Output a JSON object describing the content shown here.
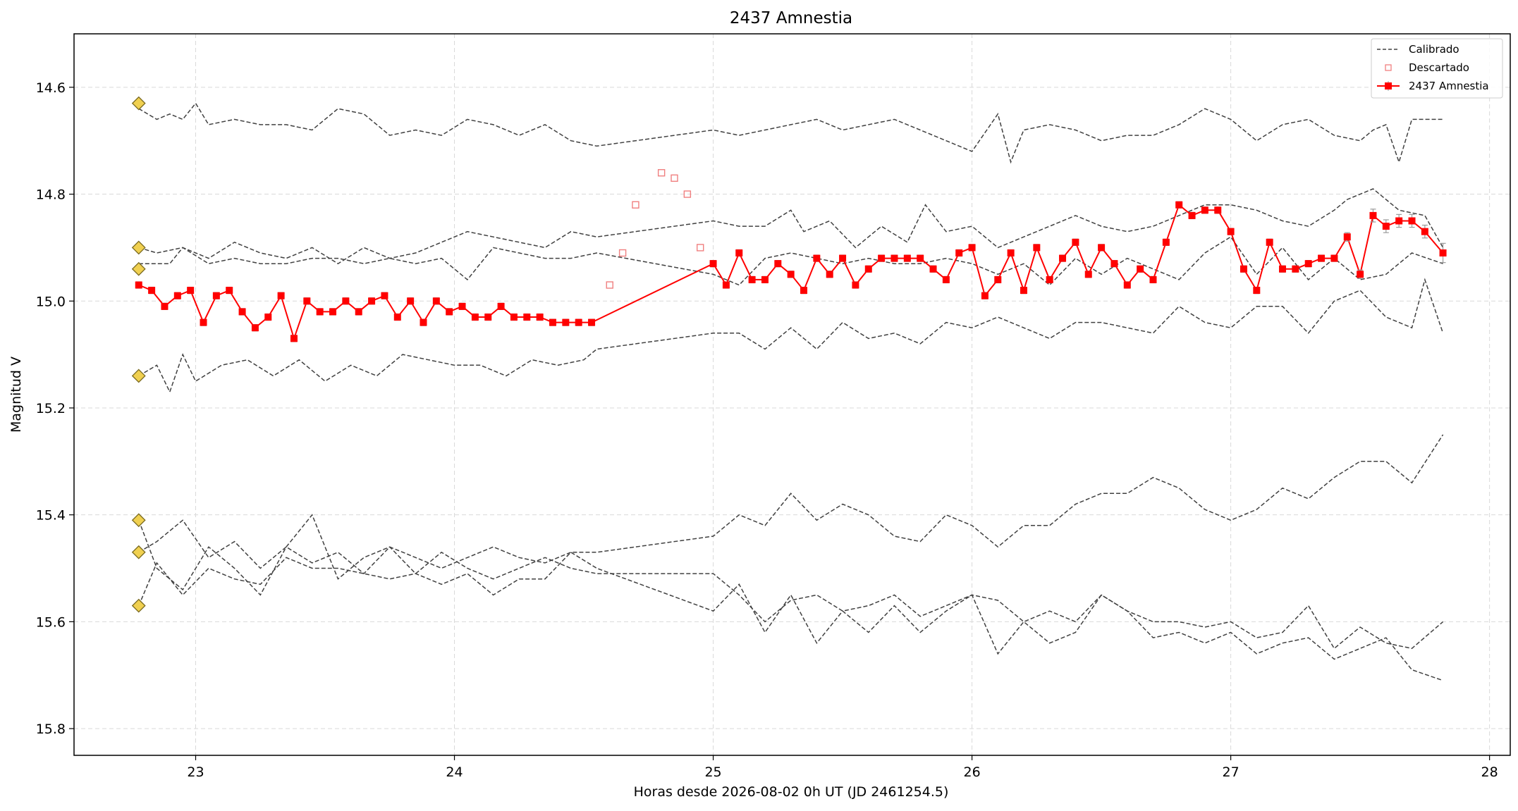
{
  "chart_data": {
    "type": "line",
    "title": "2437 Amnestia",
    "xlabel": "Horas desde 2026-08-02 0h UT (JD 2461254.5)",
    "ylabel": "Magnitud V",
    "xlim": [
      22.53,
      28.08
    ],
    "ylim": [
      15.85,
      14.5
    ],
    "y_inverted": true,
    "x_ticks": [
      23,
      24,
      25,
      26,
      27,
      28
    ],
    "y_ticks": [
      14.6,
      14.8,
      15.0,
      15.2,
      15.4,
      15.6,
      15.8
    ],
    "x_tick_labels": [
      "23",
      "24",
      "25",
      "26",
      "27",
      "28"
    ],
    "y_tick_labels": [
      "14.6",
      "14.8",
      "15.0",
      "15.2",
      "15.4",
      "15.6",
      "15.8"
    ],
    "grid": true,
    "legend_position": "top-right",
    "legend": [
      {
        "label": "Calibrado",
        "style": "dashed-line",
        "color": "#404040"
      },
      {
        "label": "Descartado",
        "style": "open-square",
        "color": "#f08080"
      },
      {
        "label": "2437 Amnestia",
        "style": "line-square-errorbar",
        "color": "#ff0000"
      }
    ],
    "comparison_markers": {
      "x": 22.78,
      "y": [
        14.63,
        14.9,
        14.94,
        15.14,
        15.41,
        15.47,
        15.57
      ],
      "color": "#f0d050"
    },
    "calibrated_series": [
      {
        "x": [
          22.78,
          22.85,
          22.9,
          22.95,
          23.0,
          23.05,
          23.15,
          23.25,
          23.35,
          23.45,
          23.55,
          23.65,
          23.75,
          23.85,
          23.95,
          24.05,
          24.15,
          24.25,
          24.35,
          24.45,
          24.55,
          25.0,
          25.1,
          25.2,
          25.3,
          25.4,
          25.5,
          25.6,
          25.7,
          25.8,
          25.9,
          26.0,
          26.1,
          26.15,
          26.2,
          26.3,
          26.4,
          26.5,
          26.6,
          26.7,
          26.8,
          26.9,
          27.0,
          27.1,
          27.2,
          27.3,
          27.4,
          27.5,
          27.55,
          27.6,
          27.65,
          27.7,
          27.82
        ],
        "y": [
          14.64,
          14.66,
          14.65,
          14.66,
          14.63,
          14.67,
          14.66,
          14.67,
          14.67,
          14.68,
          14.64,
          14.65,
          14.69,
          14.68,
          14.69,
          14.66,
          14.67,
          14.69,
          14.67,
          14.7,
          14.71,
          14.68,
          14.69,
          14.68,
          14.67,
          14.66,
          14.68,
          14.67,
          14.66,
          14.68,
          14.7,
          14.72,
          14.65,
          14.74,
          14.68,
          14.67,
          14.68,
          14.7,
          14.69,
          14.69,
          14.67,
          14.64,
          14.66,
          14.7,
          14.67,
          14.66,
          14.69,
          14.7,
          14.68,
          14.67,
          14.74,
          14.66,
          14.66
        ]
      },
      {
        "x": [
          22.78,
          22.85,
          22.95,
          23.05,
          23.15,
          23.25,
          23.35,
          23.45,
          23.55,
          23.65,
          23.75,
          23.85,
          23.95,
          24.05,
          24.15,
          24.25,
          24.35,
          24.45,
          24.55,
          25.0,
          25.1,
          25.2,
          25.3,
          25.35,
          25.45,
          25.55,
          25.65,
          25.75,
          25.82,
          25.9,
          26.0,
          26.1,
          26.2,
          26.3,
          26.4,
          26.5,
          26.6,
          26.7,
          26.8,
          26.9,
          27.0,
          27.1,
          27.2,
          27.3,
          27.4,
          27.45,
          27.55,
          27.65,
          27.75,
          27.82
        ],
        "y": [
          14.9,
          14.91,
          14.9,
          14.92,
          14.89,
          14.91,
          14.92,
          14.9,
          14.93,
          14.9,
          14.92,
          14.91,
          14.89,
          14.87,
          14.88,
          14.89,
          14.9,
          14.87,
          14.88,
          14.85,
          14.86,
          14.86,
          14.83,
          14.87,
          14.85,
          14.9,
          14.86,
          14.89,
          14.82,
          14.87,
          14.86,
          14.9,
          14.88,
          14.86,
          14.84,
          14.86,
          14.87,
          14.86,
          14.84,
          14.82,
          14.82,
          14.83,
          14.85,
          14.86,
          14.83,
          14.81,
          14.79,
          14.83,
          14.84,
          14.9
        ]
      },
      {
        "x": [
          22.78,
          22.85,
          22.9,
          22.95,
          23.05,
          23.15,
          23.25,
          23.35,
          23.45,
          23.55,
          23.65,
          23.75,
          23.85,
          23.95,
          24.05,
          24.15,
          24.25,
          24.35,
          24.45,
          24.55,
          25.0,
          25.1,
          25.2,
          25.3,
          25.4,
          25.5,
          25.6,
          25.7,
          25.8,
          25.9,
          26.0,
          26.1,
          26.2,
          26.3,
          26.4,
          26.5,
          26.6,
          26.7,
          26.8,
          26.9,
          27.0,
          27.1,
          27.2,
          27.3,
          27.4,
          27.5,
          27.6,
          27.7,
          27.82
        ],
        "y": [
          14.93,
          14.93,
          14.93,
          14.9,
          14.93,
          14.92,
          14.93,
          14.93,
          14.92,
          14.92,
          14.93,
          14.92,
          14.93,
          14.92,
          14.96,
          14.9,
          14.91,
          14.92,
          14.92,
          14.91,
          14.95,
          14.97,
          14.92,
          14.91,
          14.92,
          14.93,
          14.92,
          14.93,
          14.93,
          14.92,
          14.93,
          14.95,
          14.93,
          14.97,
          14.92,
          14.95,
          14.92,
          14.94,
          14.96,
          14.91,
          14.88,
          14.95,
          14.9,
          14.96,
          14.92,
          14.96,
          14.95,
          14.91,
          14.93
        ]
      },
      {
        "x": [
          22.78,
          22.85,
          22.9,
          22.95,
          23.0,
          23.1,
          23.2,
          23.3,
          23.4,
          23.5,
          23.6,
          23.7,
          23.8,
          23.9,
          24.0,
          24.1,
          24.2,
          24.3,
          24.4,
          24.5,
          24.55,
          25.0,
          25.1,
          25.2,
          25.3,
          25.4,
          25.5,
          25.6,
          25.7,
          25.8,
          25.9,
          26.0,
          26.1,
          26.2,
          26.3,
          26.4,
          26.5,
          26.6,
          26.7,
          26.8,
          26.9,
          27.0,
          27.1,
          27.2,
          27.3,
          27.4,
          27.5,
          27.6,
          27.7,
          27.75,
          27.82
        ],
        "y": [
          15.14,
          15.12,
          15.17,
          15.1,
          15.15,
          15.12,
          15.11,
          15.14,
          15.11,
          15.15,
          15.12,
          15.14,
          15.1,
          15.11,
          15.12,
          15.12,
          15.14,
          15.11,
          15.12,
          15.11,
          15.09,
          15.06,
          15.06,
          15.09,
          15.05,
          15.09,
          15.04,
          15.07,
          15.06,
          15.08,
          15.04,
          15.05,
          15.03,
          15.05,
          15.07,
          15.04,
          15.04,
          15.05,
          15.06,
          15.01,
          15.04,
          15.05,
          15.01,
          15.01,
          15.06,
          15.0,
          14.98,
          15.03,
          15.05,
          14.96,
          15.06
        ]
      },
      {
        "x": [
          22.78,
          22.85,
          22.95,
          23.05,
          23.15,
          23.25,
          23.35,
          23.45,
          23.55,
          23.65,
          23.75,
          23.85,
          23.95,
          24.05,
          24.15,
          24.25,
          24.35,
          24.45,
          24.55,
          25.0,
          25.1,
          25.2,
          25.3,
          25.4,
          25.5,
          25.6,
          25.7,
          25.8,
          25.9,
          26.0,
          26.1,
          26.2,
          26.3,
          26.4,
          26.5,
          26.6,
          26.7,
          26.8,
          26.9,
          27.0,
          27.1,
          27.2,
          27.3,
          27.4,
          27.5,
          27.6,
          27.7,
          27.82
        ],
        "y": [
          15.47,
          15.45,
          15.41,
          15.48,
          15.45,
          15.5,
          15.46,
          15.49,
          15.47,
          15.51,
          15.46,
          15.48,
          15.5,
          15.48,
          15.46,
          15.48,
          15.49,
          15.47,
          15.47,
          15.44,
          15.4,
          15.42,
          15.36,
          15.41,
          15.38,
          15.4,
          15.44,
          15.45,
          15.4,
          15.42,
          15.46,
          15.42,
          15.42,
          15.38,
          15.36,
          15.36,
          15.33,
          15.35,
          15.39,
          15.41,
          15.39,
          15.35,
          15.37,
          15.33,
          15.3,
          15.3,
          15.34,
          15.25
        ]
      },
      {
        "x": [
          22.78,
          22.85,
          22.95,
          23.05,
          23.15,
          23.25,
          23.35,
          23.45,
          23.55,
          23.65,
          23.75,
          23.85,
          23.95,
          24.05,
          24.15,
          24.25,
          24.35,
          24.45,
          24.55,
          25.0,
          25.1,
          25.2,
          25.3,
          25.4,
          25.5,
          25.6,
          25.7,
          25.8,
          25.9,
          26.0,
          26.1,
          26.2,
          26.3,
          26.4,
          26.5,
          26.6,
          26.7,
          26.8,
          26.9,
          27.0,
          27.1,
          27.2,
          27.3,
          27.4,
          27.5,
          27.6,
          27.7,
          27.82
        ],
        "y": [
          15.41,
          15.5,
          15.54,
          15.46,
          15.5,
          15.55,
          15.46,
          15.4,
          15.52,
          15.48,
          15.46,
          15.51,
          15.47,
          15.5,
          15.52,
          15.5,
          15.48,
          15.5,
          15.51,
          15.51,
          15.55,
          15.6,
          15.56,
          15.55,
          15.58,
          15.57,
          15.55,
          15.59,
          15.57,
          15.55,
          15.56,
          15.6,
          15.58,
          15.6,
          15.55,
          15.58,
          15.6,
          15.6,
          15.61,
          15.6,
          15.63,
          15.62,
          15.57,
          15.65,
          15.61,
          15.64,
          15.65,
          15.6
        ]
      },
      {
        "x": [
          22.78,
          22.85,
          22.95,
          23.05,
          23.15,
          23.25,
          23.35,
          23.45,
          23.55,
          23.65,
          23.75,
          23.85,
          23.95,
          24.05,
          24.15,
          24.25,
          24.35,
          24.45,
          24.55,
          25.0,
          25.1,
          25.2,
          25.3,
          25.4,
          25.5,
          25.6,
          25.7,
          25.8,
          25.9,
          26.0,
          26.1,
          26.2,
          26.3,
          26.4,
          26.5,
          26.6,
          26.7,
          26.8,
          26.9,
          27.0,
          27.1,
          27.2,
          27.3,
          27.4,
          27.5,
          27.6,
          27.7,
          27.82
        ],
        "y": [
          15.57,
          15.49,
          15.55,
          15.5,
          15.52,
          15.53,
          15.48,
          15.5,
          15.5,
          15.51,
          15.52,
          15.51,
          15.53,
          15.51,
          15.55,
          15.52,
          15.52,
          15.47,
          15.5,
          15.58,
          15.53,
          15.62,
          15.55,
          15.64,
          15.58,
          15.62,
          15.57,
          15.62,
          15.58,
          15.55,
          15.66,
          15.6,
          15.64,
          15.62,
          15.55,
          15.58,
          15.63,
          15.62,
          15.64,
          15.62,
          15.66,
          15.64,
          15.63,
          15.67,
          15.65,
          15.63,
          15.69,
          15.71
        ]
      }
    ],
    "discarded_points": {
      "x": [
        24.6,
        24.65,
        24.7,
        24.8,
        24.85,
        24.9,
        24.95
      ],
      "y": [
        14.97,
        14.91,
        14.82,
        14.76,
        14.77,
        14.8,
        14.9
      ]
    },
    "target_series": {
      "name": "2437 Amnestia",
      "x": [
        22.78,
        22.83,
        22.88,
        22.93,
        22.98,
        23.03,
        23.08,
        23.13,
        23.18,
        23.23,
        23.28,
        23.33,
        23.38,
        23.43,
        23.48,
        23.53,
        23.58,
        23.63,
        23.68,
        23.73,
        23.78,
        23.83,
        23.88,
        23.93,
        23.98,
        24.03,
        24.08,
        24.13,
        24.18,
        24.23,
        24.28,
        24.33,
        24.38,
        24.43,
        24.48,
        24.53,
        25.0,
        25.05,
        25.1,
        25.15,
        25.2,
        25.25,
        25.3,
        25.35,
        25.4,
        25.45,
        25.5,
        25.55,
        25.6,
        25.65,
        25.7,
        25.75,
        25.8,
        25.85,
        25.9,
        25.95,
        26.0,
        26.05,
        26.1,
        26.15,
        26.2,
        26.25,
        26.3,
        26.35,
        26.4,
        26.45,
        26.5,
        26.55,
        26.6,
        26.65,
        26.7,
        26.75,
        26.8,
        26.85,
        26.9,
        26.95,
        27.0,
        27.05,
        27.1,
        27.15,
        27.2,
        27.25,
        27.3,
        27.35,
        27.4,
        27.45,
        27.5,
        27.55,
        27.6,
        27.65,
        27.7,
        27.75,
        27.82
      ],
      "y": [
        14.97,
        14.98,
        15.01,
        14.99,
        14.98,
        15.04,
        14.99,
        14.98,
        15.02,
        15.05,
        15.03,
        14.99,
        15.07,
        15.0,
        15.02,
        15.02,
        15.0,
        15.02,
        15.0,
        14.99,
        15.03,
        15.0,
        15.04,
        15.0,
        15.02,
        15.01,
        15.03,
        15.03,
        15.01,
        15.03,
        15.03,
        15.03,
        15.04,
        15.04,
        15.04,
        15.04,
        14.93,
        14.97,
        14.91,
        14.96,
        14.96,
        14.93,
        14.95,
        14.98,
        14.92,
        14.95,
        14.92,
        14.97,
        14.94,
        14.92,
        14.92,
        14.92,
        14.92,
        14.94,
        14.96,
        14.91,
        14.9,
        14.99,
        14.96,
        14.91,
        14.98,
        14.9,
        14.96,
        14.92,
        14.89,
        14.95,
        14.9,
        14.93,
        14.97,
        14.94,
        14.96,
        14.89,
        14.82,
        14.84,
        14.83,
        14.83,
        14.87,
        14.94,
        14.98,
        14.89,
        14.94,
        14.94,
        14.93,
        14.92,
        14.92,
        14.88,
        14.95,
        14.84,
        14.86,
        14.85,
        14.85,
        14.87,
        14.91
      ],
      "yerr": [
        0.006,
        0.006,
        0.006,
        0.006,
        0.006,
        0.006,
        0.006,
        0.006,
        0.006,
        0.006,
        0.006,
        0.006,
        0.006,
        0.006,
        0.006,
        0.006,
        0.006,
        0.006,
        0.006,
        0.006,
        0.006,
        0.006,
        0.006,
        0.006,
        0.006,
        0.006,
        0.006,
        0.006,
        0.006,
        0.006,
        0.006,
        0.006,
        0.006,
        0.006,
        0.006,
        0.006,
        0.006,
        0.006,
        0.006,
        0.006,
        0.006,
        0.006,
        0.006,
        0.006,
        0.006,
        0.006,
        0.006,
        0.006,
        0.006,
        0.006,
        0.006,
        0.006,
        0.006,
        0.006,
        0.006,
        0.006,
        0.006,
        0.006,
        0.006,
        0.006,
        0.006,
        0.006,
        0.006,
        0.006,
        0.006,
        0.006,
        0.006,
        0.006,
        0.006,
        0.006,
        0.006,
        0.006,
        0.006,
        0.006,
        0.006,
        0.006,
        0.006,
        0.006,
        0.006,
        0.006,
        0.006,
        0.006,
        0.006,
        0.006,
        0.006,
        0.008,
        0.008,
        0.012,
        0.012,
        0.012,
        0.012,
        0.012,
        0.018
      ]
    }
  }
}
